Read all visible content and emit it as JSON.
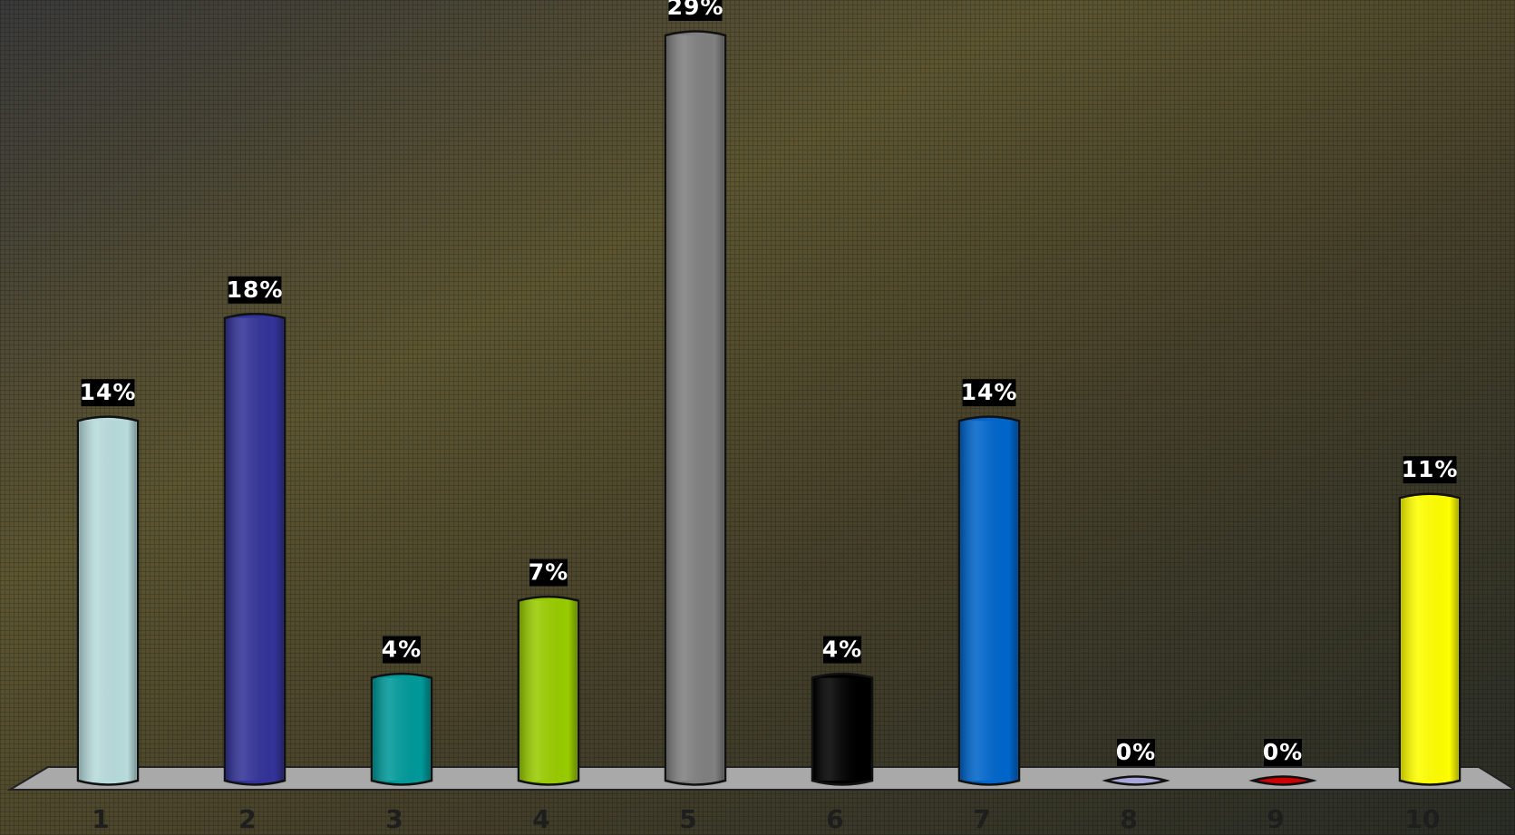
{
  "chart_data": {
    "type": "bar",
    "categories": [
      "1",
      "2",
      "3",
      "4",
      "5",
      "6",
      "7",
      "8",
      "9",
      "10"
    ],
    "values": [
      14,
      18,
      4,
      7,
      29,
      4,
      14,
      0,
      0,
      11
    ],
    "value_labels": [
      "14%",
      "18%",
      "4%",
      "7%",
      "29%",
      "4%",
      "14%",
      "0%",
      "0%",
      "11%"
    ],
    "colors": [
      "#b8dcdc",
      "#333399",
      "#009999",
      "#99cc00",
      "#808080",
      "#000000",
      "#0066cc",
      "#a6a6d9",
      "#cc0000",
      "#ffff00"
    ]
  }
}
